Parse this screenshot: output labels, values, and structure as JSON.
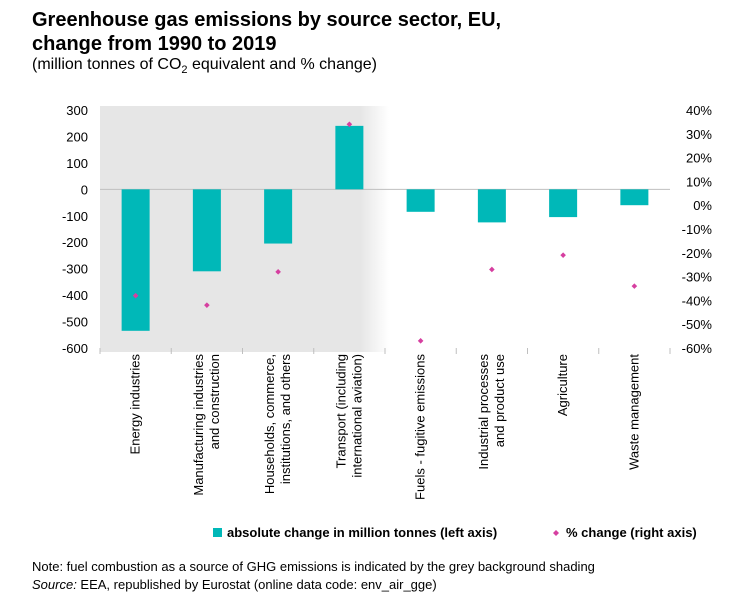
{
  "header": {
    "title_line1": "Greenhouse gas emissions by source sector, EU,",
    "title_line2": "change from 1990 to 2019",
    "subtitle_pre": "(million tonnes of CO",
    "subtitle_sub": "2",
    "subtitle_post": " equivalent and % change)"
  },
  "footer": {
    "note": "Note: fuel combustion as a source of GHG emissions is indicated by the grey background shading",
    "source_label": "Source:",
    "source_text": " EEA, republished by Eurostat (online data code: env_air_gge)"
  },
  "colors": {
    "bar": "#00b8b8",
    "marker": "#d63fa0",
    "shading": "#e6e6e6"
  },
  "chart_data": {
    "type": "bar",
    "categories": [
      [
        "Energy industries"
      ],
      [
        "Manufacturing industries",
        "and construction"
      ],
      [
        "Households, commerce,",
        "institutions, and others"
      ],
      [
        "Transport (including",
        "international aviation)"
      ],
      [
        "Fuels - fugitive emissions"
      ],
      [
        "Industrial processes",
        "and product use"
      ],
      [
        "Agriculture"
      ],
      [
        "Waste management"
      ]
    ],
    "series": [
      {
        "name": "absolute change in million tonnes (left axis)",
        "type": "bar",
        "axis": "left",
        "values": [
          -535,
          -310,
          -205,
          240,
          -85,
          -125,
          -105,
          -60
        ]
      },
      {
        "name": "% change (right axis)",
        "type": "scatter",
        "axis": "right",
        "values": [
          -38,
          -42,
          -28,
          34,
          -57,
          -27,
          -21,
          -34
        ]
      }
    ],
    "left_axis": {
      "min": -600,
      "max": 300,
      "ticks": [
        300,
        200,
        100,
        0,
        -100,
        -200,
        -300,
        -400,
        -500,
        -600
      ]
    },
    "right_axis": {
      "min": -60,
      "max": 40,
      "ticks": [
        "40%",
        "30%",
        "20%",
        "10%",
        "0%",
        "-10%",
        "-20%",
        "-30%",
        "-40%",
        "-50%",
        "-60%"
      ]
    },
    "shaded_categories": [
      0,
      1,
      2,
      3
    ],
    "legend_position": "bottom"
  }
}
